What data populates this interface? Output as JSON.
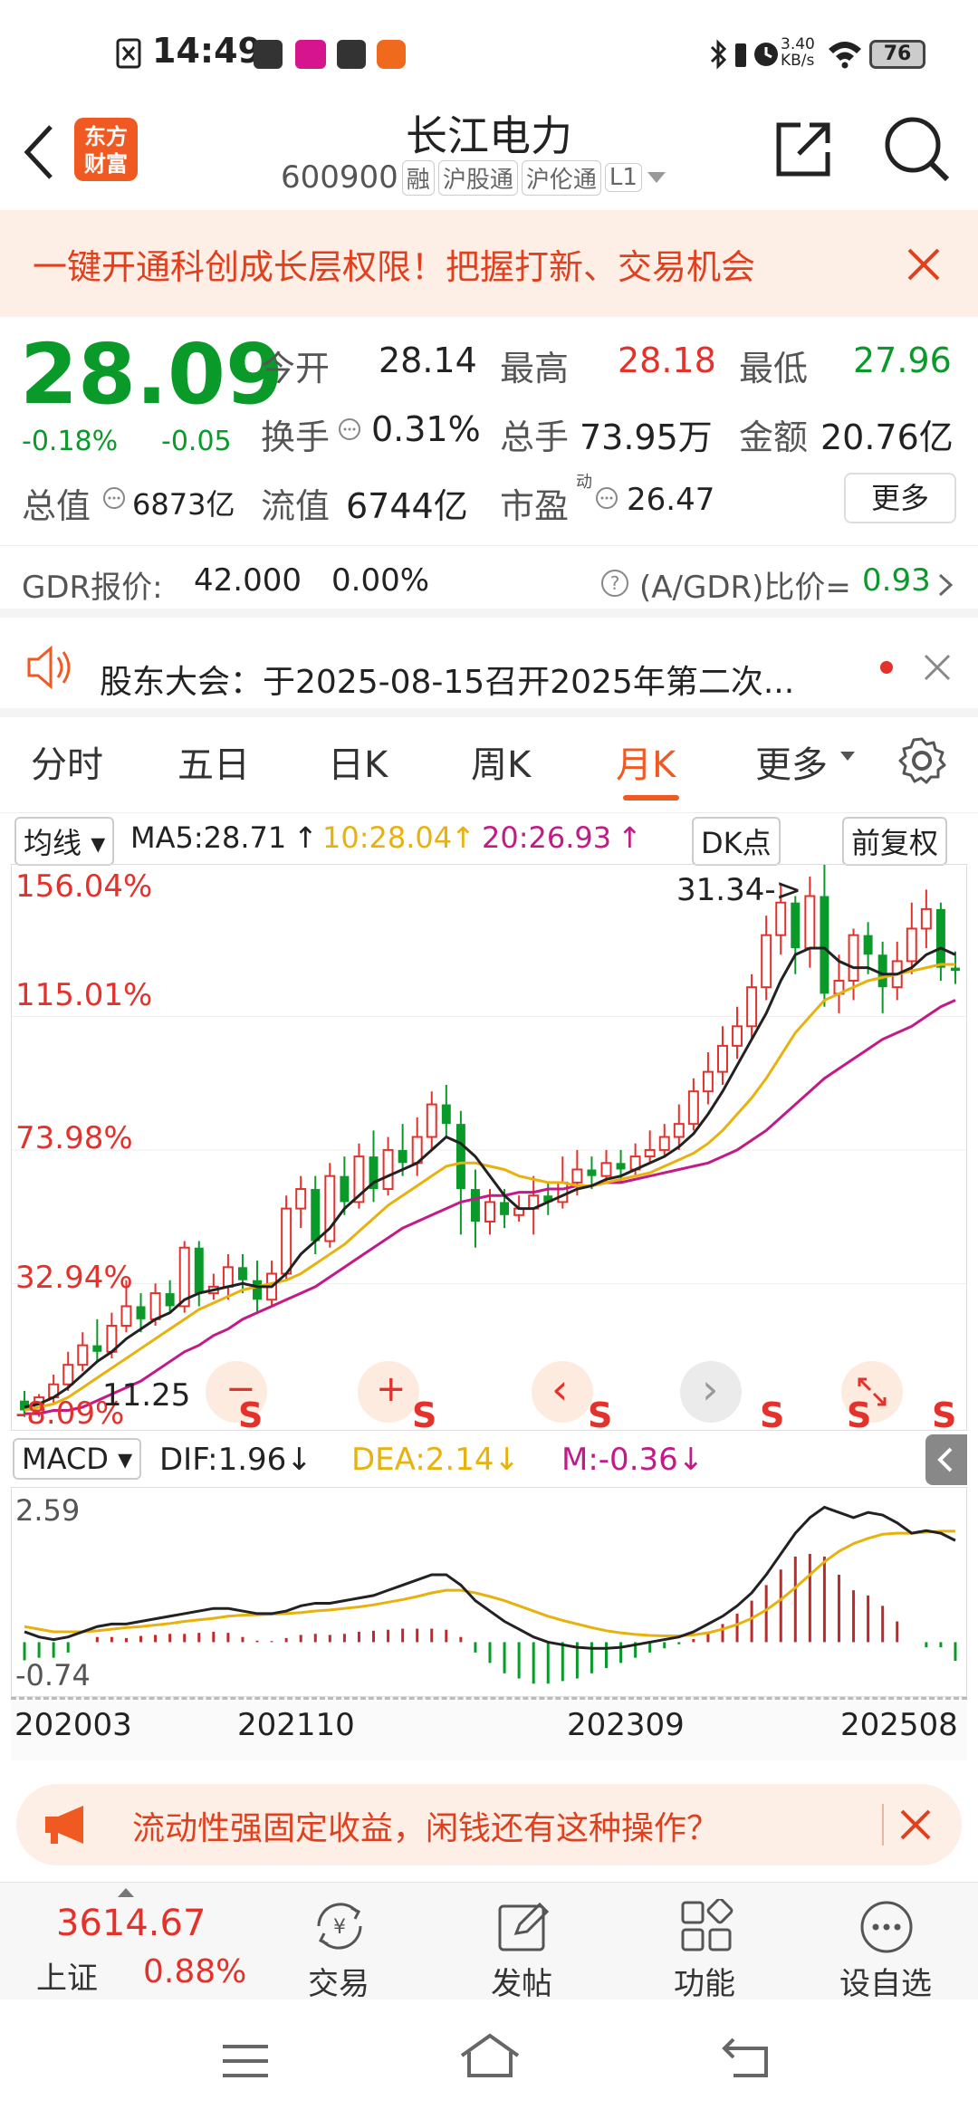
{
  "status_bar": {
    "time": "14:49",
    "net_speed": "3.40",
    "net_unit": "KB/s",
    "battery": "76"
  },
  "header": {
    "logo_line1": "东方",
    "logo_line2": "财富",
    "title": "长江电力",
    "code": "600900",
    "tags": [
      "融",
      "沪股通",
      "沪伦通",
      "L1"
    ]
  },
  "banner": {
    "text": "一键开通科创成长层权限！把握打新、交易机会"
  },
  "quote": {
    "price": "28.09",
    "change_pct": "-0.18%",
    "change": "-0.05",
    "open_label": "今开",
    "open": "28.14",
    "high_label": "最高",
    "high": "28.18",
    "low_label": "最低",
    "low": "27.96",
    "turnover_label": "换手",
    "turnover": "0.31%",
    "volume_label": "总手",
    "volume": "73.95万",
    "amount_label": "金额",
    "amount": "20.76亿",
    "mktcap_label": "总值",
    "mktcap": "6873亿",
    "float_label": "流值",
    "float": "6744亿",
    "pe_label": "市盈",
    "pe_sup": "动",
    "pe": "26.47",
    "more": "更多"
  },
  "gdr": {
    "label": "GDR报价:",
    "price": "42.000",
    "pct": "0.00%",
    "ratio_label": "(A/GDR)比价=",
    "ratio": "0.93"
  },
  "notice": {
    "text": "股东大会：于2025-08-15召开2025年第二次..."
  },
  "tabs": [
    "分时",
    "五日",
    "日K",
    "周K",
    "月K",
    "更多"
  ],
  "active_tab": "月K",
  "indicator_bar": {
    "ma_select": "均线",
    "ma5": "MA5:28.71",
    "ma10": "10:28.04",
    "ma20": "20:26.93",
    "dk": "DK点",
    "adjust": "前复权"
  },
  "chart_data": [
    {
      "type": "candlestick",
      "y_labels": [
        "156.04%",
        "115.01%",
        "73.98%",
        "32.94%",
        "-8.09%"
      ],
      "annotations": [
        "31.34->",
        "11.25"
      ],
      "ylim": [
        -8.09,
        156.04
      ],
      "ma_colors": {
        "ma5": "#222222",
        "ma10": "#e8b20e",
        "ma20": "#c21a86"
      },
      "candles": [
        {
          "o": -3,
          "c": -6,
          "h": 0,
          "l": -8
        },
        {
          "o": -6,
          "c": -2,
          "h": -1,
          "l": -8
        },
        {
          "o": -2,
          "c": 2,
          "h": 5,
          "l": -4
        },
        {
          "o": 2,
          "c": 8,
          "h": 12,
          "l": 0
        },
        {
          "o": 8,
          "c": 14,
          "h": 18,
          "l": 6
        },
        {
          "o": 14,
          "c": 12,
          "h": 22,
          "l": 9
        },
        {
          "o": 12,
          "c": 20,
          "h": 24,
          "l": 10
        },
        {
          "o": 20,
          "c": 26,
          "h": 34,
          "l": 18
        },
        {
          "o": 26,
          "c": 22,
          "h": 30,
          "l": 18
        },
        {
          "o": 22,
          "c": 30,
          "h": 33,
          "l": 20
        },
        {
          "o": 30,
          "c": 26,
          "h": 34,
          "l": 24
        },
        {
          "o": 26,
          "c": 44,
          "h": 46,
          "l": 24
        },
        {
          "o": 44,
          "c": 30,
          "h": 46,
          "l": 26
        },
        {
          "o": 30,
          "c": 32,
          "h": 36,
          "l": 28
        },
        {
          "o": 32,
          "c": 38,
          "h": 42,
          "l": 28
        },
        {
          "o": 38,
          "c": 34,
          "h": 42,
          "l": 30
        },
        {
          "o": 34,
          "c": 28,
          "h": 40,
          "l": 24
        },
        {
          "o": 28,
          "c": 36,
          "h": 40,
          "l": 26
        },
        {
          "o": 36,
          "c": 56,
          "h": 60,
          "l": 34
        },
        {
          "o": 56,
          "c": 62,
          "h": 66,
          "l": 50
        },
        {
          "o": 62,
          "c": 46,
          "h": 66,
          "l": 42
        },
        {
          "o": 46,
          "c": 66,
          "h": 70,
          "l": 44
        },
        {
          "o": 66,
          "c": 58,
          "h": 72,
          "l": 54
        },
        {
          "o": 58,
          "c": 72,
          "h": 76,
          "l": 56
        },
        {
          "o": 72,
          "c": 62,
          "h": 80,
          "l": 58
        },
        {
          "o": 62,
          "c": 74,
          "h": 78,
          "l": 60
        },
        {
          "o": 74,
          "c": 70,
          "h": 82,
          "l": 66
        },
        {
          "o": 70,
          "c": 78,
          "h": 84,
          "l": 66
        },
        {
          "o": 78,
          "c": 88,
          "h": 92,
          "l": 74
        },
        {
          "o": 88,
          "c": 82,
          "h": 94,
          "l": 78
        },
        {
          "o": 82,
          "c": 62,
          "h": 86,
          "l": 48
        },
        {
          "o": 62,
          "c": 52,
          "h": 68,
          "l": 44
        },
        {
          "o": 52,
          "c": 58,
          "h": 62,
          "l": 48
        },
        {
          "o": 58,
          "c": 54,
          "h": 62,
          "l": 50
        },
        {
          "o": 54,
          "c": 56,
          "h": 60,
          "l": 52
        },
        {
          "o": 56,
          "c": 60,
          "h": 66,
          "l": 48
        },
        {
          "o": 60,
          "c": 58,
          "h": 64,
          "l": 54
        },
        {
          "o": 58,
          "c": 64,
          "h": 72,
          "l": 56
        },
        {
          "o": 64,
          "c": 68,
          "h": 74,
          "l": 60
        },
        {
          "o": 68,
          "c": 66,
          "h": 72,
          "l": 62
        },
        {
          "o": 66,
          "c": 70,
          "h": 74,
          "l": 64
        },
        {
          "o": 70,
          "c": 68,
          "h": 74,
          "l": 64
        },
        {
          "o": 68,
          "c": 72,
          "h": 76,
          "l": 66
        },
        {
          "o": 72,
          "c": 74,
          "h": 80,
          "l": 70
        },
        {
          "o": 74,
          "c": 78,
          "h": 82,
          "l": 72
        },
        {
          "o": 78,
          "c": 82,
          "h": 88,
          "l": 74
        },
        {
          "o": 82,
          "c": 92,
          "h": 96,
          "l": 80
        },
        {
          "o": 92,
          "c": 98,
          "h": 104,
          "l": 88
        },
        {
          "o": 98,
          "c": 106,
          "h": 112,
          "l": 94
        },
        {
          "o": 106,
          "c": 112,
          "h": 118,
          "l": 102
        },
        {
          "o": 112,
          "c": 124,
          "h": 128,
          "l": 108
        },
        {
          "o": 124,
          "c": 140,
          "h": 146,
          "l": 120
        },
        {
          "o": 140,
          "c": 150,
          "h": 156,
          "l": 134
        },
        {
          "o": 150,
          "c": 136,
          "h": 152,
          "l": 128
        },
        {
          "o": 136,
          "c": 152,
          "h": 158,
          "l": 130
        },
        {
          "o": 152,
          "c": 122,
          "h": 162,
          "l": 118
        },
        {
          "o": 122,
          "c": 126,
          "h": 134,
          "l": 116
        },
        {
          "o": 126,
          "c": 140,
          "h": 142,
          "l": 120
        },
        {
          "o": 140,
          "c": 134,
          "h": 144,
          "l": 128
        },
        {
          "o": 134,
          "c": 124,
          "h": 138,
          "l": 116
        },
        {
          "o": 124,
          "c": 132,
          "h": 138,
          "l": 120
        },
        {
          "o": 132,
          "c": 142,
          "h": 150,
          "l": 128
        },
        {
          "o": 142,
          "c": 148,
          "h": 154,
          "l": 136
        },
        {
          "o": 148,
          "c": 130,
          "h": 150,
          "l": 126
        },
        {
          "o": 130,
          "c": 129,
          "h": 135,
          "l": 125
        }
      ],
      "ma5": [
        -5,
        -4,
        -2,
        1,
        5,
        9,
        12,
        16,
        19,
        22,
        24,
        28,
        30,
        31,
        32,
        33,
        32,
        32,
        36,
        42,
        46,
        50,
        56,
        60,
        64,
        66,
        68,
        70,
        74,
        78,
        76,
        72,
        66,
        60,
        56,
        56,
        58,
        60,
        62,
        63,
        65,
        66,
        68,
        70,
        72,
        75,
        79,
        85,
        92,
        100,
        108,
        116,
        126,
        134,
        136,
        136,
        132,
        130,
        130,
        128,
        128,
        130,
        134,
        136,
        134
      ],
      "ma10": [
        -6,
        -5,
        -4,
        -2,
        1,
        4,
        7,
        10,
        13,
        16,
        19,
        22,
        25,
        27,
        29,
        31,
        32,
        33,
        34,
        36,
        39,
        42,
        45,
        49,
        53,
        57,
        60,
        63,
        66,
        69,
        70,
        70,
        69,
        68,
        66,
        65,
        64,
        64,
        63,
        63,
        64,
        65,
        66,
        67,
        69,
        71,
        73,
        76,
        80,
        85,
        90,
        96,
        103,
        110,
        115,
        120,
        122,
        124,
        126,
        127,
        128,
        129,
        130,
        131,
        131
      ],
      "ma20": [
        -7,
        -7,
        -6,
        -6,
        -5,
        -3,
        -1,
        1,
        3,
        6,
        9,
        12,
        14,
        17,
        19,
        22,
        24,
        26,
        28,
        30,
        32,
        35,
        38,
        41,
        44,
        47,
        50,
        52,
        54,
        56,
        58,
        59,
        60,
        60,
        61,
        61,
        62,
        62,
        63,
        63,
        64,
        64,
        65,
        66,
        67,
        68,
        69,
        70,
        72,
        74,
        77,
        80,
        84,
        88,
        92,
        96,
        99,
        102,
        105,
        108,
        110,
        112,
        115,
        118,
        120
      ]
    },
    {
      "type": "macd",
      "label": "MACD",
      "dif": "DIF:1.96↓",
      "dea": "DEA:2.14↓",
      "m": "M:-0.36↓",
      "y_labels": [
        "2.59",
        "-0.74"
      ],
      "x_labels": [
        "202003",
        "202110",
        "202309",
        "202508"
      ],
      "ylim": [
        -0.9,
        2.8
      ],
      "dif_series": [
        0.2,
        0.1,
        0.05,
        0.1,
        0.2,
        0.3,
        0.35,
        0.35,
        0.4,
        0.45,
        0.5,
        0.55,
        0.6,
        0.65,
        0.65,
        0.6,
        0.55,
        0.55,
        0.6,
        0.7,
        0.75,
        0.75,
        0.8,
        0.85,
        0.9,
        1.0,
        1.1,
        1.2,
        1.3,
        1.3,
        1.1,
        0.8,
        0.6,
        0.4,
        0.25,
        0.1,
        0.0,
        -0.05,
        -0.1,
        -0.12,
        -0.12,
        -0.1,
        -0.05,
        0.0,
        0.05,
        0.1,
        0.2,
        0.35,
        0.5,
        0.7,
        0.95,
        1.3,
        1.7,
        2.1,
        2.4,
        2.6,
        2.5,
        2.4,
        2.5,
        2.45,
        2.3,
        2.1,
        2.15,
        2.1,
        1.96
      ],
      "dea_series": [
        0.3,
        0.25,
        0.2,
        0.2,
        0.2,
        0.22,
        0.25,
        0.28,
        0.3,
        0.33,
        0.36,
        0.4,
        0.43,
        0.46,
        0.5,
        0.52,
        0.53,
        0.54,
        0.55,
        0.57,
        0.6,
        0.62,
        0.65,
        0.68,
        0.72,
        0.77,
        0.82,
        0.88,
        0.95,
        1.0,
        1.0,
        0.95,
        0.88,
        0.8,
        0.7,
        0.6,
        0.5,
        0.42,
        0.35,
        0.28,
        0.22,
        0.18,
        0.15,
        0.13,
        0.12,
        0.12,
        0.14,
        0.18,
        0.25,
        0.34,
        0.46,
        0.62,
        0.82,
        1.05,
        1.3,
        1.55,
        1.75,
        1.9,
        2.0,
        2.08,
        2.1,
        2.1,
        2.12,
        2.14,
        2.14
      ],
      "m_series": [
        -0.35,
        -0.3,
        -0.3,
        -0.2,
        0.0,
        0.1,
        0.1,
        0.08,
        0.12,
        0.14,
        0.16,
        0.16,
        0.18,
        0.2,
        0.18,
        0.1,
        0.03,
        0.02,
        0.08,
        0.14,
        0.16,
        0.14,
        0.16,
        0.2,
        0.22,
        0.24,
        0.26,
        0.26,
        0.26,
        0.24,
        0.1,
        -0.2,
        -0.4,
        -0.6,
        -0.7,
        -0.8,
        -0.8,
        -0.75,
        -0.7,
        -0.6,
        -0.5,
        -0.4,
        -0.3,
        -0.2,
        -0.12,
        -0.04,
        0.06,
        0.2,
        0.35,
        0.55,
        0.8,
        1.1,
        1.4,
        1.65,
        1.7,
        1.65,
        1.3,
        1.0,
        0.9,
        0.7,
        0.4,
        0.0,
        -0.1,
        -0.1,
        -0.36
      ]
    }
  ],
  "chart_nav": {
    "zoom_out": "−",
    "zoom_in": "+",
    "left": "‹",
    "right": "›",
    "s": "S"
  },
  "bottom_ad": {
    "text": "流动性强固定收益，闲钱还有这种操作？"
  },
  "tabbar": {
    "index_value": "3614.67",
    "index_name": "上证",
    "index_pct": "0.88%",
    "items": [
      "交易",
      "发帖",
      "功能",
      "设自选"
    ]
  }
}
